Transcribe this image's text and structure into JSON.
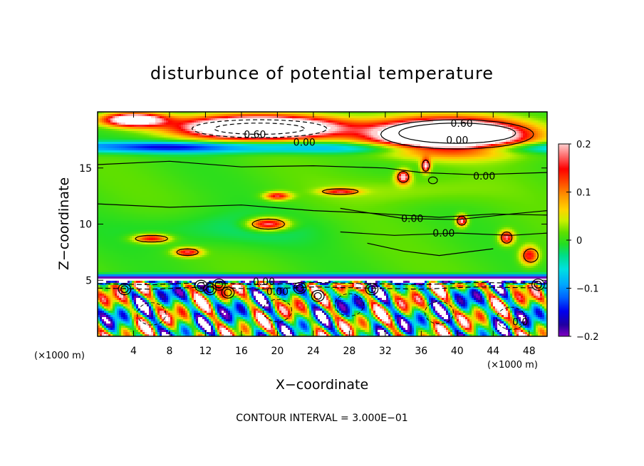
{
  "chart_data": {
    "type": "heatmap",
    "title": "disturbunce of potential temperature",
    "xlabel": "X−coordinate",
    "ylabel": "Z−coordinate",
    "x_unit": "(×1000 m)",
    "z_unit": "(×1000 m)",
    "xlim": [
      0,
      50
    ],
    "ylim": [
      0,
      20
    ],
    "x_ticks": [
      "4",
      "8",
      "12",
      "16",
      "20",
      "24",
      "28",
      "32",
      "36",
      "40",
      "44",
      "48"
    ],
    "y_ticks": [
      "5",
      "10",
      "15"
    ],
    "colorbar": {
      "range": [
        -0.2,
        0.2
      ],
      "ticks": [
        "0.2",
        "0.1",
        "0",
        "−0.1",
        "−0.2"
      ]
    },
    "contour_labels": [
      {
        "text": "0.60",
        "x": 17.5,
        "y": 18.0
      },
      {
        "text": "0.60",
        "x": 40.5,
        "y": 19.0
      },
      {
        "text": "0.00",
        "x": 23.0,
        "y": 17.3
      },
      {
        "text": "0.00",
        "x": 40.0,
        "y": 17.5
      },
      {
        "text": "0.00",
        "x": 43.0,
        "y": 14.3
      },
      {
        "text": "0.00",
        "x": 35.0,
        "y": 10.5
      },
      {
        "text": "0.00",
        "x": 38.5,
        "y": 9.2
      },
      {
        "text": "0.00",
        "x": 18.5,
        "y": 4.9
      },
      {
        "text": "0.00",
        "x": 20.0,
        "y": 4.0
      },
      {
        "text": "0.0",
        "x": 47.0,
        "y": 1.3
      }
    ],
    "contour_interval": "CONTOUR INTERVAL = 3.000E−01"
  }
}
